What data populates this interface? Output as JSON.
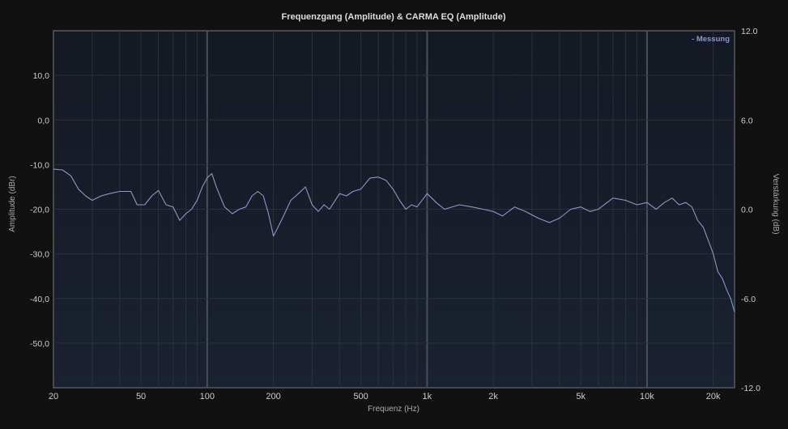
{
  "chart_data": {
    "type": "line",
    "title": "Frequenzgang (Amplitude) & CARMA EQ (Amplitude)",
    "xlabel": "Frequenz (Hz)",
    "ylabel": "Amplitude (dBr)",
    "y2label": "Verstärkung (dB)",
    "xscale": "log",
    "xlim": [
      20,
      25000
    ],
    "ylim": [
      -60,
      20
    ],
    "y2lim": [
      -12,
      12
    ],
    "x_ticks": [
      {
        "v": 20,
        "label": "20"
      },
      {
        "v": 50,
        "label": "50"
      },
      {
        "v": 100,
        "label": "100"
      },
      {
        "v": 200,
        "label": "200"
      },
      {
        "v": 500,
        "label": "500"
      },
      {
        "v": 1000,
        "label": "1k"
      },
      {
        "v": 2000,
        "label": "2k"
      },
      {
        "v": 5000,
        "label": "5k"
      },
      {
        "v": 10000,
        "label": "10k"
      },
      {
        "v": 20000,
        "label": "20k"
      }
    ],
    "y_ticks": [
      {
        "v": 10,
        "label": "10,0"
      },
      {
        "v": 0,
        "label": "0,0"
      },
      {
        "v": -10,
        "label": "-10,0"
      },
      {
        "v": -20,
        "label": "-20,0"
      },
      {
        "v": -30,
        "label": "-30,0"
      },
      {
        "v": -40,
        "label": "-40,0"
      },
      {
        "v": -50,
        "label": "-50,0"
      }
    ],
    "y2_ticks": [
      {
        "v": 12,
        "label": "12.0"
      },
      {
        "v": 6,
        "label": "6.0"
      },
      {
        "v": 0,
        "label": "0.0"
      },
      {
        "v": -6,
        "label": "-6.0"
      },
      {
        "v": -12,
        "label": "-12.0"
      }
    ],
    "legend": {
      "label": "- Messung",
      "position": "top-right"
    },
    "grid": true,
    "series": [
      {
        "name": "Messung",
        "color": "#8e97c8",
        "x": [
          20,
          22,
          24,
          26,
          28,
          30,
          33,
          36,
          40,
          45,
          48,
          52,
          56,
          60,
          65,
          70,
          75,
          80,
          85,
          90,
          95,
          100,
          105,
          110,
          120,
          130,
          140,
          150,
          160,
          170,
          180,
          190,
          200,
          210,
          220,
          240,
          260,
          280,
          300,
          320,
          340,
          360,
          400,
          430,
          460,
          500,
          550,
          600,
          650,
          700,
          750,
          800,
          850,
          900,
          1000,
          1100,
          1200,
          1400,
          1600,
          1800,
          2000,
          2200,
          2500,
          2800,
          3200,
          3600,
          4000,
          4500,
          5000,
          5500,
          6000,
          7000,
          8000,
          9000,
          10000,
          11000,
          12000,
          13000,
          14000,
          15000,
          16000,
          17000,
          18000,
          19000,
          20000,
          21000,
          22000,
          23000,
          24000,
          25000
        ],
        "y": [
          -11,
          -11.2,
          -12.5,
          -15.5,
          -17,
          -18,
          -17,
          -16.5,
          -16,
          -16,
          -19,
          -19,
          -17,
          -15.8,
          -19,
          -19.5,
          -22.5,
          -21,
          -20,
          -18,
          -15,
          -13,
          -12,
          -15,
          -19.5,
          -21,
          -20,
          -19.5,
          -17,
          -16,
          -17,
          -21,
          -26,
          -24,
          -22,
          -18,
          -16.5,
          -15,
          -19,
          -20.5,
          -19,
          -20,
          -16.5,
          -17,
          -16,
          -15.5,
          -13,
          -12.8,
          -13.5,
          -15.5,
          -18,
          -20,
          -19,
          -19.5,
          -16.5,
          -18.5,
          -20,
          -19,
          -19.5,
          -20,
          -20.5,
          -21.5,
          -19.5,
          -20.5,
          -22,
          -23,
          -22,
          -20,
          -19.5,
          -20.5,
          -20,
          -17.5,
          -18,
          -19,
          -18.5,
          -20,
          -18.5,
          -17.5,
          -19,
          -18.5,
          -19.5,
          -22.5,
          -24,
          -27,
          -30,
          -34,
          -35.5,
          -38,
          -40,
          -43
        ]
      }
    ]
  }
}
